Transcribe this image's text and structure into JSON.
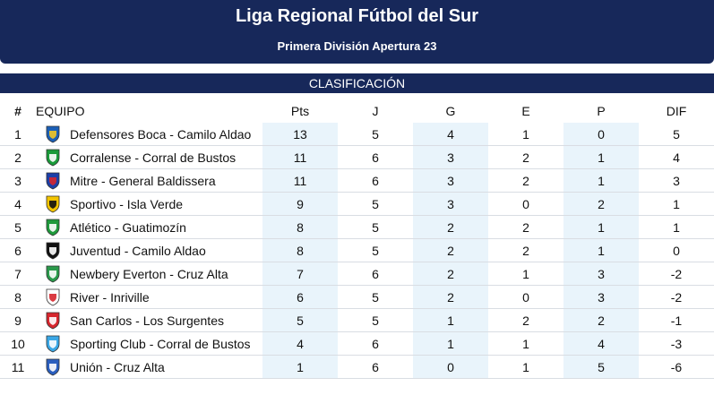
{
  "header": {
    "title": "Liga Regional Fútbol del Sur",
    "subtitle": "Primera División Apertura 23"
  },
  "section_title": "CLASIFICACIÓN",
  "columns": {
    "pos": "#",
    "team": "EQUIPO",
    "pts": "Pts",
    "j": "J",
    "g": "G",
    "e": "E",
    "p": "P",
    "dif": "DIF"
  },
  "rows": [
    {
      "pos": "1",
      "team": "Defensores Boca - Camilo Aldao",
      "pts": "13",
      "j": "5",
      "g": "4",
      "e": "1",
      "p": "0",
      "dif": "5",
      "crest_icon": "defensores-boca-crest-icon",
      "colors": [
        "#1b5fb6",
        "#f3c623"
      ]
    },
    {
      "pos": "2",
      "team": "Corralense - Corral de Bustos",
      "pts": "11",
      "j": "6",
      "g": "3",
      "e": "2",
      "p": "1",
      "dif": "4",
      "crest_icon": "corralense-crest-icon",
      "colors": [
        "#1a9b3a",
        "#ffffff"
      ]
    },
    {
      "pos": "3",
      "team": "Mitre - General Baldissera",
      "pts": "11",
      "j": "6",
      "g": "3",
      "e": "2",
      "p": "1",
      "dif": "3",
      "crest_icon": "mitre-crest-icon",
      "colors": [
        "#1b3fa8",
        "#d6262d"
      ]
    },
    {
      "pos": "4",
      "team": "Sportivo - Isla Verde",
      "pts": "9",
      "j": "5",
      "g": "3",
      "e": "0",
      "p": "2",
      "dif": "1",
      "crest_icon": "sportivo-crest-icon",
      "colors": [
        "#f2c400",
        "#111111"
      ]
    },
    {
      "pos": "5",
      "team": "Atlético - Guatimozín",
      "pts": "8",
      "j": "5",
      "g": "2",
      "e": "2",
      "p": "1",
      "dif": "1",
      "crest_icon": "atletico-crest-icon",
      "colors": [
        "#1f9a3c",
        "#ffffff"
      ]
    },
    {
      "pos": "6",
      "team": "Juventud - Camilo Aldao",
      "pts": "8",
      "j": "5",
      "g": "2",
      "e": "2",
      "p": "1",
      "dif": "0",
      "crest_icon": "juventud-crest-icon",
      "colors": [
        "#111111",
        "#ffffff"
      ]
    },
    {
      "pos": "7",
      "team": "Newbery Everton - Cruz Alta",
      "pts": "7",
      "j": "6",
      "g": "2",
      "e": "1",
      "p": "3",
      "dif": "-2",
      "crest_icon": "newbery-crest-icon",
      "colors": [
        "#2a9a4b",
        "#ffffff"
      ]
    },
    {
      "pos": "8",
      "team": "River - Inriville",
      "pts": "6",
      "j": "5",
      "g": "2",
      "e": "0",
      "p": "3",
      "dif": "-2",
      "crest_icon": "river-crest-icon",
      "colors": [
        "#ffffff",
        "#d6262d"
      ]
    },
    {
      "pos": "9",
      "team": "San Carlos - Los Surgentes",
      "pts": "5",
      "j": "5",
      "g": "1",
      "e": "2",
      "p": "2",
      "dif": "-1",
      "crest_icon": "san-carlos-crest-icon",
      "colors": [
        "#d6262d",
        "#ffffff"
      ]
    },
    {
      "pos": "10",
      "team": "Sporting Club - Corral de Bustos",
      "pts": "4",
      "j": "6",
      "g": "1",
      "e": "1",
      "p": "4",
      "dif": "-3",
      "crest_icon": "sporting-club-crest-icon",
      "colors": [
        "#3aa7e6",
        "#ffffff"
      ]
    },
    {
      "pos": "11",
      "team": "Unión - Cruz Alta",
      "pts": "1",
      "j": "6",
      "g": "0",
      "e": "1",
      "p": "5",
      "dif": "-6",
      "crest_icon": "union-crest-icon",
      "colors": [
        "#2b5fbf",
        "#ffffff"
      ]
    }
  ]
}
